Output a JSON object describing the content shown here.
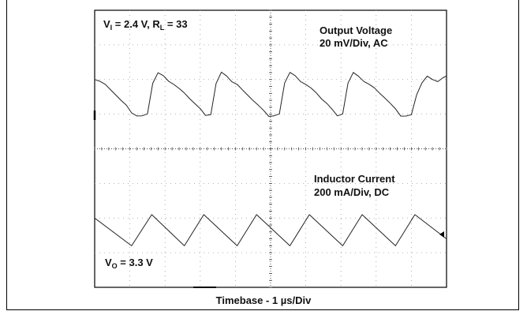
{
  "chart_data": {
    "type": "line",
    "subtype": "oscilloscope capture",
    "grid": true,
    "grid_divisions": {
      "x": 10,
      "y": 8
    },
    "timebase": "1 µs/Div",
    "caption": {
      "prefix": "Timebase - 1 ",
      "mu": "µ",
      "suffix": "s/Div"
    },
    "annotations": {
      "vi": {
        "prefix": "V",
        "sub": "I",
        "text": " = 2.4 V,  R",
        "sub2": "L",
        "suffix": " = 33"
      },
      "vo": {
        "prefix": "V",
        "sub": "O",
        "suffix": " = 3.3 V"
      }
    },
    "series": [
      {
        "name": "Output Voltage",
        "label_line1": "Output Voltage",
        "label_line2": "20 mV/Div, AC",
        "scale": "20 mV/Div",
        "coupling": "AC",
        "x_div": [
          0.0,
          0.15,
          0.3,
          0.45,
          0.6,
          0.75,
          0.9,
          1.05,
          1.2,
          1.35,
          1.5,
          1.65,
          1.8,
          1.95,
          2.1,
          2.25,
          2.4,
          2.55,
          2.7,
          2.85,
          3.0,
          3.15,
          3.3,
          3.45,
          3.6,
          3.75,
          3.9,
          4.05,
          4.2,
          4.35,
          4.5,
          4.65,
          4.8,
          4.95,
          5.1,
          5.25,
          5.4,
          5.55,
          5.7,
          5.85,
          6.0,
          6.15,
          6.3,
          6.45,
          6.6,
          6.75,
          6.9,
          7.05,
          7.2,
          7.35,
          7.5,
          7.65,
          7.8,
          7.95,
          8.1,
          8.25,
          8.4,
          8.55,
          8.7,
          8.85,
          9.0,
          9.15,
          9.3,
          9.45,
          9.6,
          9.75,
          9.9,
          10.0
        ],
        "y_div": [
          2.0,
          1.95,
          1.85,
          1.7,
          1.55,
          1.4,
          1.25,
          1.05,
          0.95,
          0.95,
          1.0,
          1.9,
          2.2,
          2.1,
          1.95,
          1.85,
          1.75,
          1.6,
          1.45,
          1.3,
          1.15,
          0.95,
          1.0,
          1.9,
          2.2,
          2.1,
          1.95,
          1.85,
          1.7,
          1.55,
          1.4,
          1.25,
          1.1,
          0.95,
          0.95,
          1.0,
          1.9,
          2.2,
          2.1,
          1.95,
          1.85,
          1.75,
          1.6,
          1.45,
          1.3,
          1.15,
          0.95,
          1.0,
          1.9,
          2.2,
          2.1,
          1.95,
          1.85,
          1.75,
          1.6,
          1.45,
          1.3,
          1.15,
          0.95,
          0.95,
          1.0,
          1.55,
          1.9,
          2.1,
          2.0,
          1.95,
          2.05,
          2.1
        ]
      },
      {
        "name": "Inductor Current",
        "label_line1": "Inductor Current",
        "label_line2": "200 mA/Div, DC",
        "scale": "200 mA/Div",
        "coupling": "DC",
        "x_div": [
          0.0,
          1.05,
          1.62,
          2.55,
          3.1,
          4.05,
          4.6,
          5.55,
          6.1,
          7.05,
          7.6,
          8.55,
          9.1,
          10.0
        ],
        "y_div": [
          -2.0,
          -2.8,
          -1.9,
          -2.8,
          -1.9,
          -2.8,
          -1.9,
          -2.8,
          -1.9,
          -2.8,
          -1.9,
          -2.8,
          -1.9,
          -2.6
        ]
      }
    ]
  }
}
